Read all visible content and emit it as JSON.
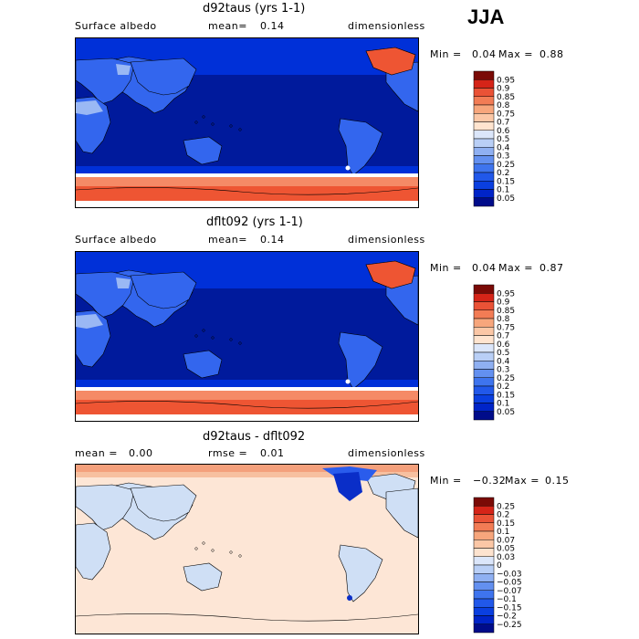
{
  "season": "JJA",
  "panels": [
    {
      "title": "d92taus (yrs 1-1)",
      "left_label": "Surface albedo",
      "mid_label": "mean=",
      "mid_value": "0.14",
      "right_label": "dimensionless",
      "min_label": "Min =",
      "min_value": "0.04",
      "max_label": "Max =",
      "max_value": "0.88"
    },
    {
      "title": "dflt092 (yrs 1-1)",
      "left_label": "Surface albedo",
      "mid_label": "mean=",
      "mid_value": "0.14",
      "right_label": "dimensionless",
      "min_label": "Min =",
      "min_value": "0.04",
      "max_label": "Max =",
      "max_value": "0.87"
    },
    {
      "title": "d92taus - dflt092",
      "left_label": "mean =",
      "left_value": "0.00",
      "mid_label": "rmse =",
      "mid_value": "0.01",
      "right_label": "dimensionless",
      "min_label": "Min =",
      "min_value": "−0.32",
      "max_label": "Max =",
      "max_value": "0.15"
    }
  ],
  "chart_data": [
    {
      "type": "heatmap",
      "title": "d92taus (yrs 1-1)",
      "variable": "Surface albedo",
      "units": "dimensionless",
      "mean": 0.14,
      "min": 0.04,
      "max": 0.88,
      "colorbar_levels": [
        "0.05",
        "0.1",
        "0.15",
        "0.2",
        "0.25",
        "0.3",
        "0.4",
        "0.5",
        "0.6",
        "0.7",
        "0.75",
        "0.8",
        "0.85",
        "0.9",
        "0.95"
      ],
      "colorbar_colors": [
        "#000c8a",
        "#0024c8",
        "#0a3fe0",
        "#2158ea",
        "#3e74ee",
        "#6390f0",
        "#8fb0f2",
        "#b9cff6",
        "#dbe6fa",
        "#ffe4cf",
        "#fbc7a6",
        "#f7a67c",
        "#f27c55",
        "#ea5236",
        "#d52418",
        "#7a0a06"
      ]
    },
    {
      "type": "heatmap",
      "title": "dflt092 (yrs 1-1)",
      "variable": "Surface albedo",
      "units": "dimensionless",
      "mean": 0.14,
      "min": 0.04,
      "max": 0.87,
      "colorbar_levels": [
        "0.05",
        "0.1",
        "0.15",
        "0.2",
        "0.25",
        "0.3",
        "0.4",
        "0.5",
        "0.6",
        "0.7",
        "0.75",
        "0.8",
        "0.85",
        "0.9",
        "0.95"
      ],
      "colorbar_colors": [
        "#000c8a",
        "#0024c8",
        "#0a3fe0",
        "#2158ea",
        "#3e74ee",
        "#6390f0",
        "#8fb0f2",
        "#b9cff6",
        "#dbe6fa",
        "#ffe4cf",
        "#fbc7a6",
        "#f7a67c",
        "#f27c55",
        "#ea5236",
        "#d52418",
        "#7a0a06"
      ]
    },
    {
      "type": "heatmap",
      "title": "d92taus - dflt092",
      "units": "dimensionless",
      "mean": 0.0,
      "rmse": 0.01,
      "min": -0.32,
      "max": 0.15,
      "colorbar_levels": [
        "−0.25",
        "−0.2",
        "−0.15",
        "−0.1",
        "−0.07",
        "−0.05",
        "−0.03",
        "0",
        "0.03",
        "0.05",
        "0.07",
        "0.1",
        "0.15",
        "0.2",
        "0.25"
      ],
      "colorbar_colors": [
        "#000c8a",
        "#0024c8",
        "#0a3fe0",
        "#2158ea",
        "#3e74ee",
        "#6390f0",
        "#8fb0f2",
        "#b9cff6",
        "#dbe6fa",
        "#fde3cf",
        "#fbc7a6",
        "#f7a67c",
        "#f27c55",
        "#ea5236",
        "#d52418",
        "#7a0a06"
      ]
    }
  ],
  "palette": {
    "deep_ocean": "#001a9c",
    "ocean": "#0030d8",
    "land_mid": "#3366ee",
    "land_light": "#9ab8f4",
    "snow": "#ffffff",
    "ice_red": "#ee5533",
    "ice_orange": "#f58a66",
    "diff_bg": "#fde6d6",
    "diff_land": "#cfdff5",
    "coast": "#000000"
  }
}
